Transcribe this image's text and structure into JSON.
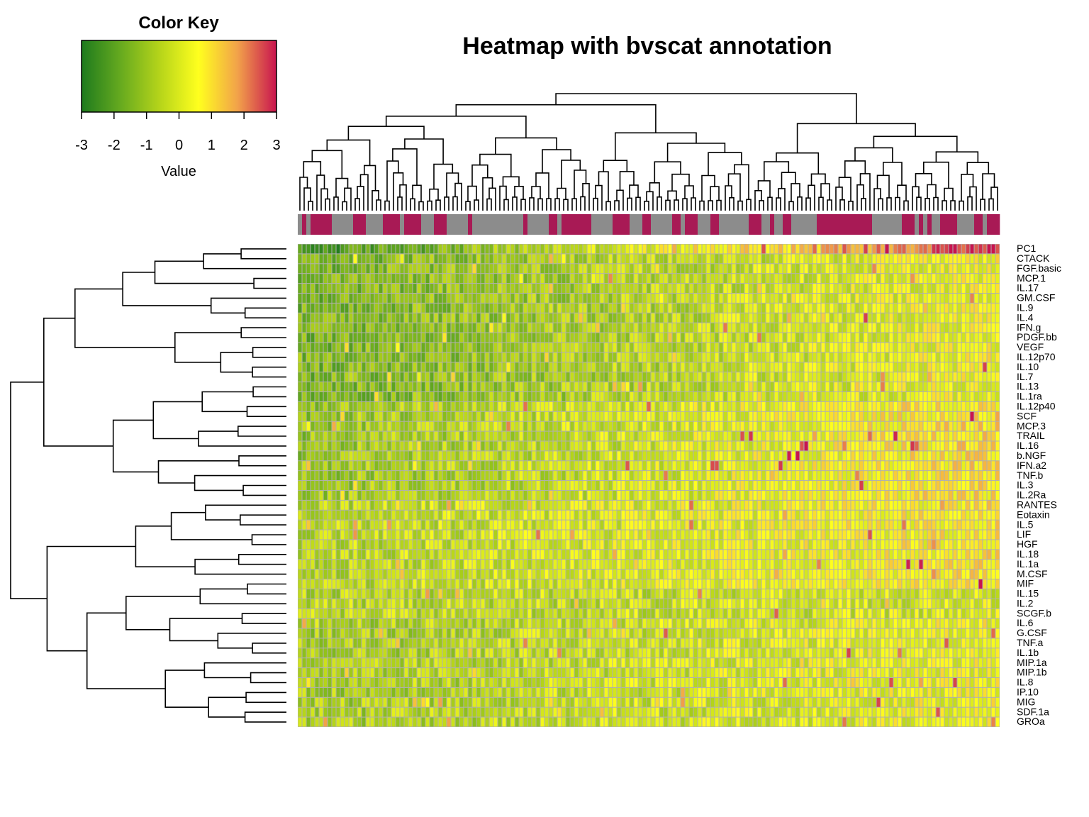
{
  "chart_data": {
    "type": "heatmap",
    "title": "Heatmap with bvscat annotation",
    "color_key": {
      "title": "Color Key",
      "xlabel": "Value",
      "ticks": [
        "-3",
        "-2",
        "-1",
        "0",
        "1",
        "2",
        "3"
      ],
      "range": [
        -3,
        3
      ],
      "colors": [
        "#1e7a1e",
        "#66aa1f",
        "#b5d41a",
        "#ffff1e",
        "#f2a24a",
        "#c8144f"
      ]
    },
    "annotation": {
      "name": "bvscat",
      "colors": [
        "#8c8c8c",
        "#a81a55"
      ]
    },
    "rows": [
      "PC1",
      "CTACK",
      "FGF.basic",
      "MCP.1",
      "IL.17",
      "GM.CSF",
      "IL.9",
      "IL.4",
      "IFN.g",
      "PDGF.bb",
      "VEGF",
      "IL.12p70",
      "IL.10",
      "IL.7",
      "IL.13",
      "IL.1ra",
      "IL.12p40",
      "SCF",
      "MCP.3",
      "TRAIL",
      "IL.16",
      "b.NGF",
      "IFN.a2",
      "TNF.b",
      "IL.3",
      "IL.2Ra",
      "RANTES",
      "Eotaxin",
      "IL.5",
      "LIF",
      "HGF",
      "IL.18",
      "IL.1a",
      "M.CSF",
      "MIF",
      "IL.15",
      "IL.2",
      "SCGF.b",
      "IL.6",
      "G.CSF",
      "TNF.a",
      "IL.1b",
      "MIP.1a",
      "MIP.1b",
      "IL.8",
      "IP.10",
      "MIG",
      "SDF.1a",
      "GROa"
    ],
    "row_trend_groups": [
      {
        "rows": "PC1",
        "approx_value_left": -2.5,
        "approx_value_right": 3
      },
      {
        "rows": "CTACK..IL.1ra",
        "approx_value_left": -1.5,
        "approx_value_right": 0.5
      },
      {
        "rows": "IL.12p40..IL.2Ra",
        "approx_value_left": -1,
        "approx_value_right": 1
      },
      {
        "rows": "RANTES..MIF",
        "approx_value_left": -0.5,
        "approx_value_right": 0.8
      },
      {
        "rows": "IL.15..SCGF.b",
        "approx_value_left": -0.5,
        "approx_value_right": 0
      },
      {
        "rows": "IL.6..GROa",
        "approx_value_left": -0.8,
        "approx_value_right": 0.5
      }
    ],
    "n_columns": 165
  }
}
